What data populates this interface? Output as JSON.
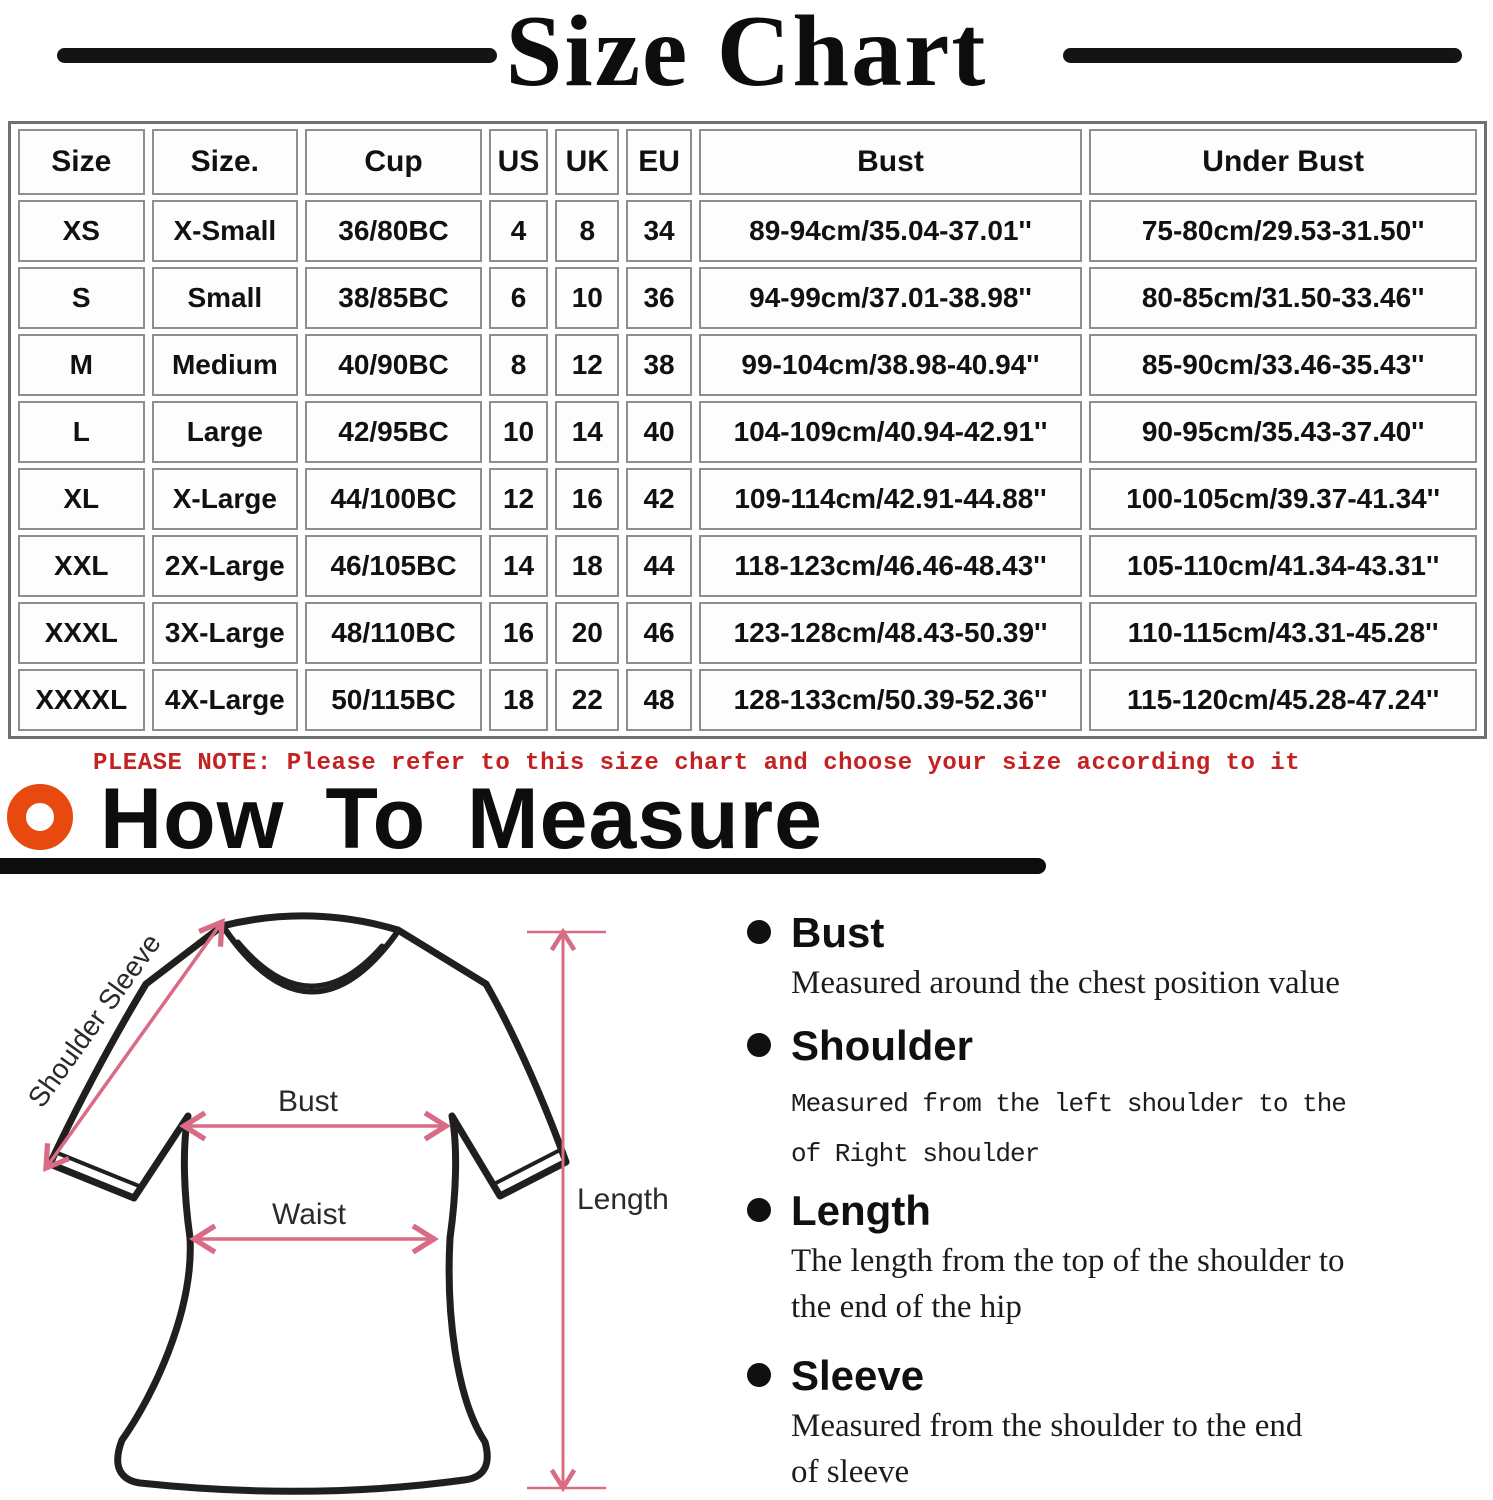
{
  "title": "Size Chart",
  "size_table": {
    "headers": [
      "Size",
      "Size.",
      "Cup",
      "US",
      "UK",
      "EU",
      "Bust",
      "Under Bust"
    ],
    "rows": [
      [
        "XS",
        "X-Small",
        "36/80BC",
        "4",
        "8",
        "34",
        "89-94cm/35.04-37.01''",
        "75-80cm/29.53-31.50''"
      ],
      [
        "S",
        "Small",
        "38/85BC",
        "6",
        "10",
        "36",
        "94-99cm/37.01-38.98''",
        "80-85cm/31.50-33.46''"
      ],
      [
        "M",
        "Medium",
        "40/90BC",
        "8",
        "12",
        "38",
        "99-104cm/38.98-40.94''",
        "85-90cm/33.46-35.43''"
      ],
      [
        "L",
        "Large",
        "42/95BC",
        "10",
        "14",
        "40",
        "104-109cm/40.94-42.91''",
        "90-95cm/35.43-37.40''"
      ],
      [
        "XL",
        "X-Large",
        "44/100BC",
        "12",
        "16",
        "42",
        "109-114cm/42.91-44.88''",
        "100-105cm/39.37-41.34''"
      ],
      [
        "XXL",
        "2X-Large",
        "46/105BC",
        "14",
        "18",
        "44",
        "118-123cm/46.46-48.43''",
        "105-110cm/41.34-43.31''"
      ],
      [
        "XXXL",
        "3X-Large",
        "48/110BC",
        "16",
        "20",
        "46",
        "123-128cm/48.43-50.39''",
        "110-115cm/43.31-45.28''"
      ],
      [
        "XXXXL",
        "4X-Large",
        "50/115BC",
        "18",
        "22",
        "48",
        "128-133cm/50.39-52.36''",
        "115-120cm/45.28-47.24''"
      ]
    ]
  },
  "note": "PLEASE NOTE: Please refer to this size chart and choose your size according to it",
  "how_to_measure": {
    "heading": "How To Measure",
    "items": [
      {
        "term": "Bust",
        "description": "Measured around the chest position value"
      },
      {
        "term": "Shoulder",
        "description": "Measured from the left shoulder to the\nof Right shoulder"
      },
      {
        "term": "Length",
        "description": "The length from the top of the shoulder to\nthe end of the hip"
      },
      {
        "term": "Sleeve",
        "description": "Measured from the shoulder to the end\nof sleeve"
      }
    ]
  },
  "diagram_labels": {
    "shoulder_sleeve": "Shoulder Sleeve",
    "bust": "Bust",
    "waist": "Waist",
    "length": "Length"
  },
  "colors": {
    "accent_orange": "#E8490F",
    "note_red": "#C32222",
    "arrow_pink": "#D96B85",
    "text_black": "#111111"
  }
}
